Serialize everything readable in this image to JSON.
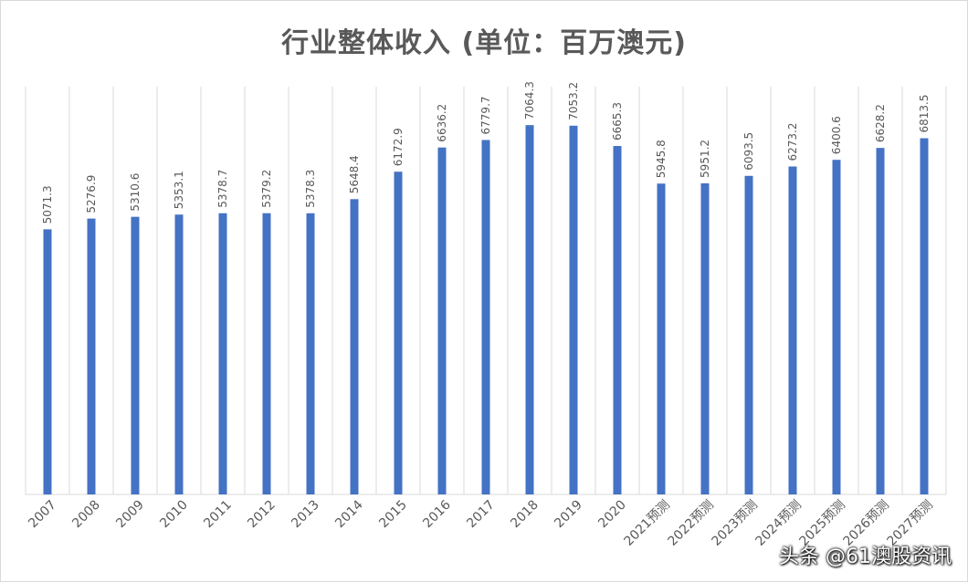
{
  "title": "行业整体收入 (单位：百万澳元)",
  "watermark": "头条 @61澳股资讯",
  "colors": {
    "bar": "#4472c4",
    "grid": "#d9d9d9",
    "label": "#595959"
  },
  "chart_data": {
    "type": "bar",
    "title": "行业整体收入 (单位：百万澳元)",
    "xlabel": "",
    "ylabel": "",
    "grid": "vertical",
    "legend": "none",
    "categories": [
      "2007",
      "2008",
      "2009",
      "2010",
      "2011",
      "2012",
      "2013",
      "2014",
      "2015",
      "2016",
      "2017",
      "2018",
      "2019",
      "2020",
      "2021预测",
      "2022预测",
      "2023预测",
      "2024预测",
      "2025预测",
      "2026预测",
      "2027预测"
    ],
    "values": [
      5071.3,
      5276.9,
      5310.6,
      5353.1,
      5378.7,
      5379.2,
      5378.3,
      5648.4,
      6172.9,
      6636.2,
      6779.7,
      7064.3,
      7053.2,
      6665.3,
      5945.8,
      5951.2,
      6093.5,
      6273.2,
      6400.6,
      6628.2,
      6813.5
    ],
    "data_labels": [
      "5071.3",
      "5276.9",
      "5310.6",
      "5353.1",
      "5378.7",
      "5379.2",
      "5378.3",
      "5648.4",
      "6172.9",
      "6636.2",
      "6779.7",
      "7064.3",
      "7053.2",
      "6665.3",
      "5945.8",
      "5951.2",
      "6093.5",
      "6273.2",
      "6400.6",
      "6628.2",
      "6813.5"
    ],
    "ylim": [
      0,
      7800
    ]
  }
}
